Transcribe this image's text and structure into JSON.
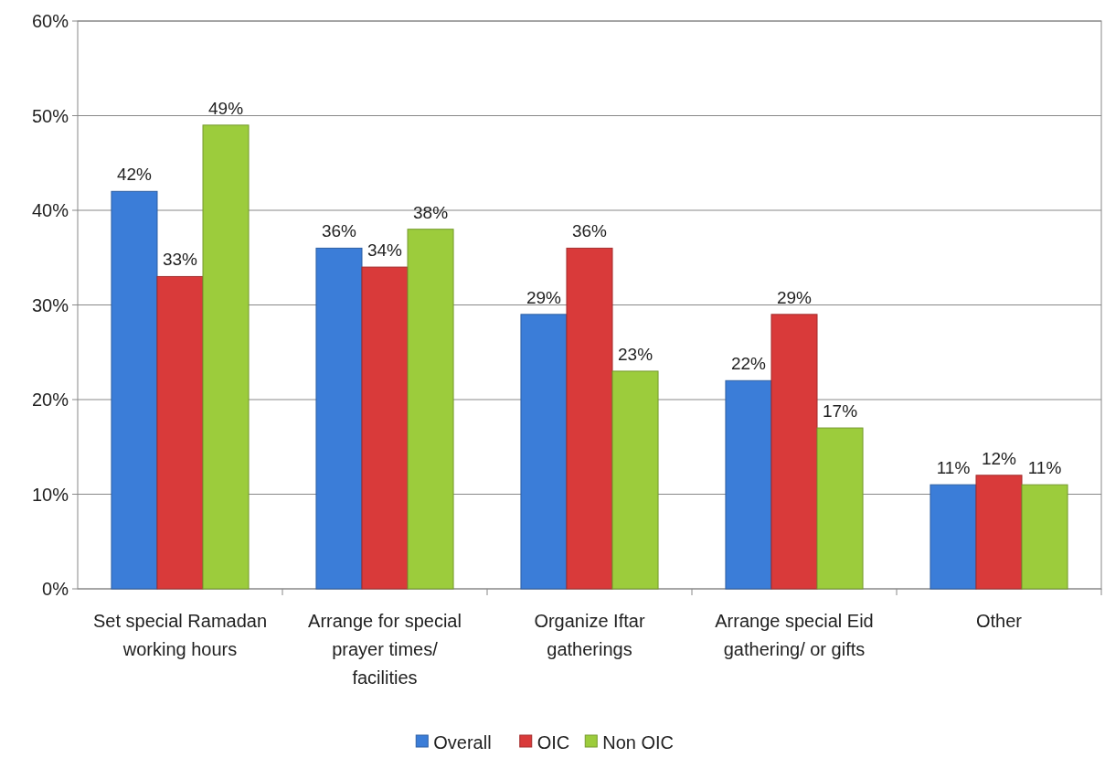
{
  "chart_data": {
    "type": "bar",
    "categories": [
      "Set special Ramadan working hours",
      "Arrange for special prayer times/ facilities",
      "Organize Iftar gatherings",
      "Arrange special Eid gathering/ or gifts",
      "Other"
    ],
    "series": [
      {
        "name": "Overall",
        "color": "#3b7dd8",
        "values": [
          42,
          36,
          29,
          22,
          11
        ],
        "value_labels": [
          "42%",
          "36%",
          "29%",
          "22%",
          "11%"
        ]
      },
      {
        "name": "OIC",
        "color": "#d93a3a",
        "values": [
          33,
          34,
          36,
          29,
          12
        ],
        "value_labels": [
          "33%",
          "34%",
          "36%",
          "29%",
          "12%"
        ]
      },
      {
        "name": "Non OIC",
        "color": "#9ccc3c",
        "values": [
          49,
          38,
          23,
          17,
          11
        ],
        "value_labels": [
          "49%",
          "38%",
          "23%",
          "17%",
          "11%"
        ]
      }
    ],
    "ylim": [
      0,
      60
    ],
    "yticks": [
      {
        "value": 0,
        "label": "0%"
      },
      {
        "value": 10,
        "label": "10%"
      },
      {
        "value": 20,
        "label": "20%"
      },
      {
        "value": 30,
        "label": "30%"
      },
      {
        "value": 40,
        "label": "40%"
      },
      {
        "value": 50,
        "label": "50%"
      },
      {
        "value": 60,
        "label": "60%"
      }
    ],
    "grid": "y",
    "legend": "bottom"
  }
}
